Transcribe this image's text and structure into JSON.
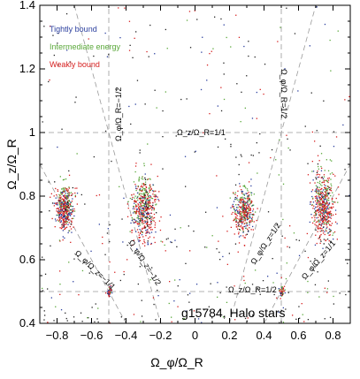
{
  "chart_data": {
    "type": "scatter",
    "title": "",
    "xlabel": "Ω_φ/Ω_R",
    "ylabel": "Ω_z/Ω_R",
    "xlim": [
      -0.9,
      0.9
    ],
    "ylim": [
      0.4,
      1.4
    ],
    "xticks": [
      "−0.8",
      "−0.6",
      "−0.4",
      "−0.2",
      "0",
      "0.2",
      "0.4",
      "0.6",
      "0.8"
    ],
    "xtick_values": [
      -0.8,
      -0.6,
      -0.4,
      -0.2,
      0,
      0.2,
      0.4,
      0.6,
      0.8
    ],
    "yticks": [
      "0.4",
      "0.6",
      "0.8",
      "1",
      "1.2",
      "1.4"
    ],
    "ytick_values": [
      0.4,
      0.6,
      0.8,
      1.0,
      1.2,
      1.4
    ],
    "grid": false,
    "legend_position": "top-left",
    "series": [
      {
        "name": "Tightly bound",
        "color": "#2b3f9e"
      },
      {
        "name": "Intermediate energy",
        "color": "#5aa83a"
      },
      {
        "name": "Weakly bound",
        "color": "#d62020"
      }
    ],
    "clusters": [
      {
        "x": -0.76,
        "y": 0.76,
        "sx": 0.025,
        "sy": 0.035,
        "n": 420
      },
      {
        "x": -0.3,
        "y": 0.755,
        "sx": 0.035,
        "sy": 0.045,
        "n": 520
      },
      {
        "x": 0.28,
        "y": 0.745,
        "sx": 0.03,
        "sy": 0.035,
        "n": 380
      },
      {
        "x": 0.74,
        "y": 0.77,
        "sx": 0.03,
        "sy": 0.05,
        "n": 520
      },
      {
        "x": -0.5,
        "y": 0.5,
        "sx": 0.008,
        "sy": 0.008,
        "n": 40
      },
      {
        "x": 0.5,
        "y": 0.5,
        "sx": 0.008,
        "sy": 0.008,
        "n": 40
      }
    ],
    "resonance_lines": [
      {
        "label": "Ω_z/Ω_R=1/1",
        "kind": "horizontal",
        "y": 1.0
      },
      {
        "label": "Ω_z/Ω_R=1/2",
        "kind": "horizontal",
        "y": 0.5
      },
      {
        "label": "Ω_φ/Ω_R=−1/2",
        "kind": "vertical",
        "x": -0.5
      },
      {
        "label": "Ω_φ/Ω_R=1/2",
        "kind": "vertical",
        "x": 0.5
      },
      {
        "label": "Ω_φ/Ω_z=−1/2",
        "kind": "diagonal",
        "x1": 0.0,
        "y1": 0.0,
        "x2": -0.6,
        "y2": 1.2
      },
      {
        "label": "Ω_φ/Ω_z=1/2",
        "kind": "diagonal",
        "x1": 0.0,
        "y1": 0.0,
        "x2": 0.6,
        "y2": 1.2
      },
      {
        "label": "Ω_φ/Ω_z=−1/1",
        "kind": "diagonal",
        "x1": 0.0,
        "y1": 0.0,
        "x2": -1.0,
        "y2": 1.0
      },
      {
        "label": "Ω_φ/Ω_z=1/1",
        "kind": "diagonal",
        "x1": 0.0,
        "y1": 0.0,
        "x2": 1.0,
        "y2": 1.0
      }
    ],
    "annotation": "g15784, Halo stars"
  }
}
